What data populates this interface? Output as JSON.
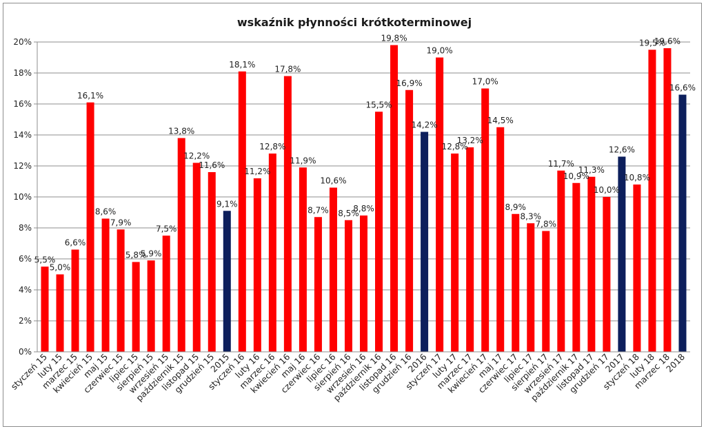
{
  "chart_data": {
    "type": "bar",
    "title": "wskaźnik płynności krótkoterminowej",
    "xlabel": "",
    "ylabel": "",
    "ylim": [
      0,
      20
    ],
    "y_ticks": [
      "0%",
      "2%",
      "4%",
      "6%",
      "8%",
      "10%",
      "12%",
      "14%",
      "16%",
      "18%",
      "20%"
    ],
    "grid": true,
    "legend": "none",
    "colors": {
      "monthly": "#ff0000",
      "annual": "#0d1f5c"
    },
    "categories": [
      "styczeń 15",
      "luty 15",
      "marzec 15",
      "kwiecień 15",
      "maj 15",
      "czerwiec 15",
      "lipiec 15",
      "sierpień 15",
      "wrzesień 15",
      "październik 15",
      "listopad 15",
      "grudzień 15",
      "2015",
      "styczeń 16",
      "luty 16",
      "marzec 16",
      "kwiecień 16",
      "maj 16",
      "czerwiec 16",
      "lipiec 16",
      "sierpień 16",
      "wrzesień 16",
      "październik 16",
      "listopad 16",
      "grudzień 16",
      "2016",
      "styczeń 17",
      "luty 17",
      "marzec 17",
      "kwiecień 17",
      "maj 17",
      "czerwiec 17",
      "lipiec 17",
      "sierpień 17",
      "wrzesień 17",
      "październik 17",
      "listopad 17",
      "grudzień 17",
      "2017",
      "styczeń 18",
      "luty 18",
      "marzec 18",
      "2018"
    ],
    "values": [
      5.5,
      5.0,
      6.6,
      16.1,
      8.6,
      7.9,
      5.8,
      5.9,
      7.5,
      13.8,
      12.2,
      11.6,
      9.1,
      18.1,
      11.2,
      12.8,
      17.8,
      11.9,
      8.7,
      10.6,
      8.5,
      8.8,
      15.5,
      19.8,
      16.9,
      14.2,
      19.0,
      12.8,
      13.2,
      17.0,
      14.5,
      8.9,
      8.3,
      7.8,
      11.7,
      10.9,
      11.3,
      10.0,
      12.6,
      10.8,
      19.5,
      19.6,
      16.6
    ],
    "labels": [
      "5,5%",
      "5,0%",
      "6,6%",
      "16,1%",
      "8,6%",
      "7,9%",
      "5,8%",
      "5,9%",
      "7,5%",
      "13,8%",
      "12,2%",
      "11,6%",
      "9,1%",
      "18,1%",
      "11,2%",
      "12,8%",
      "17,8%",
      "11,9%",
      "8,7%",
      "10,6%",
      "8,5%",
      "8,8%",
      "15,5%",
      "19,8%",
      "16,9%",
      "14,2%",
      "19,0%",
      "12,8%",
      "13,2%",
      "17,0%",
      "14,5%",
      "8,9%",
      "8,3%",
      "7,8%",
      "11,7%",
      "10,9%",
      "11,3%",
      "10,0%",
      "12,6%",
      "10,8%",
      "19,5%",
      "19,6%",
      "16,6%"
    ],
    "annual_indices": [
      12,
      25,
      38,
      42
    ]
  }
}
